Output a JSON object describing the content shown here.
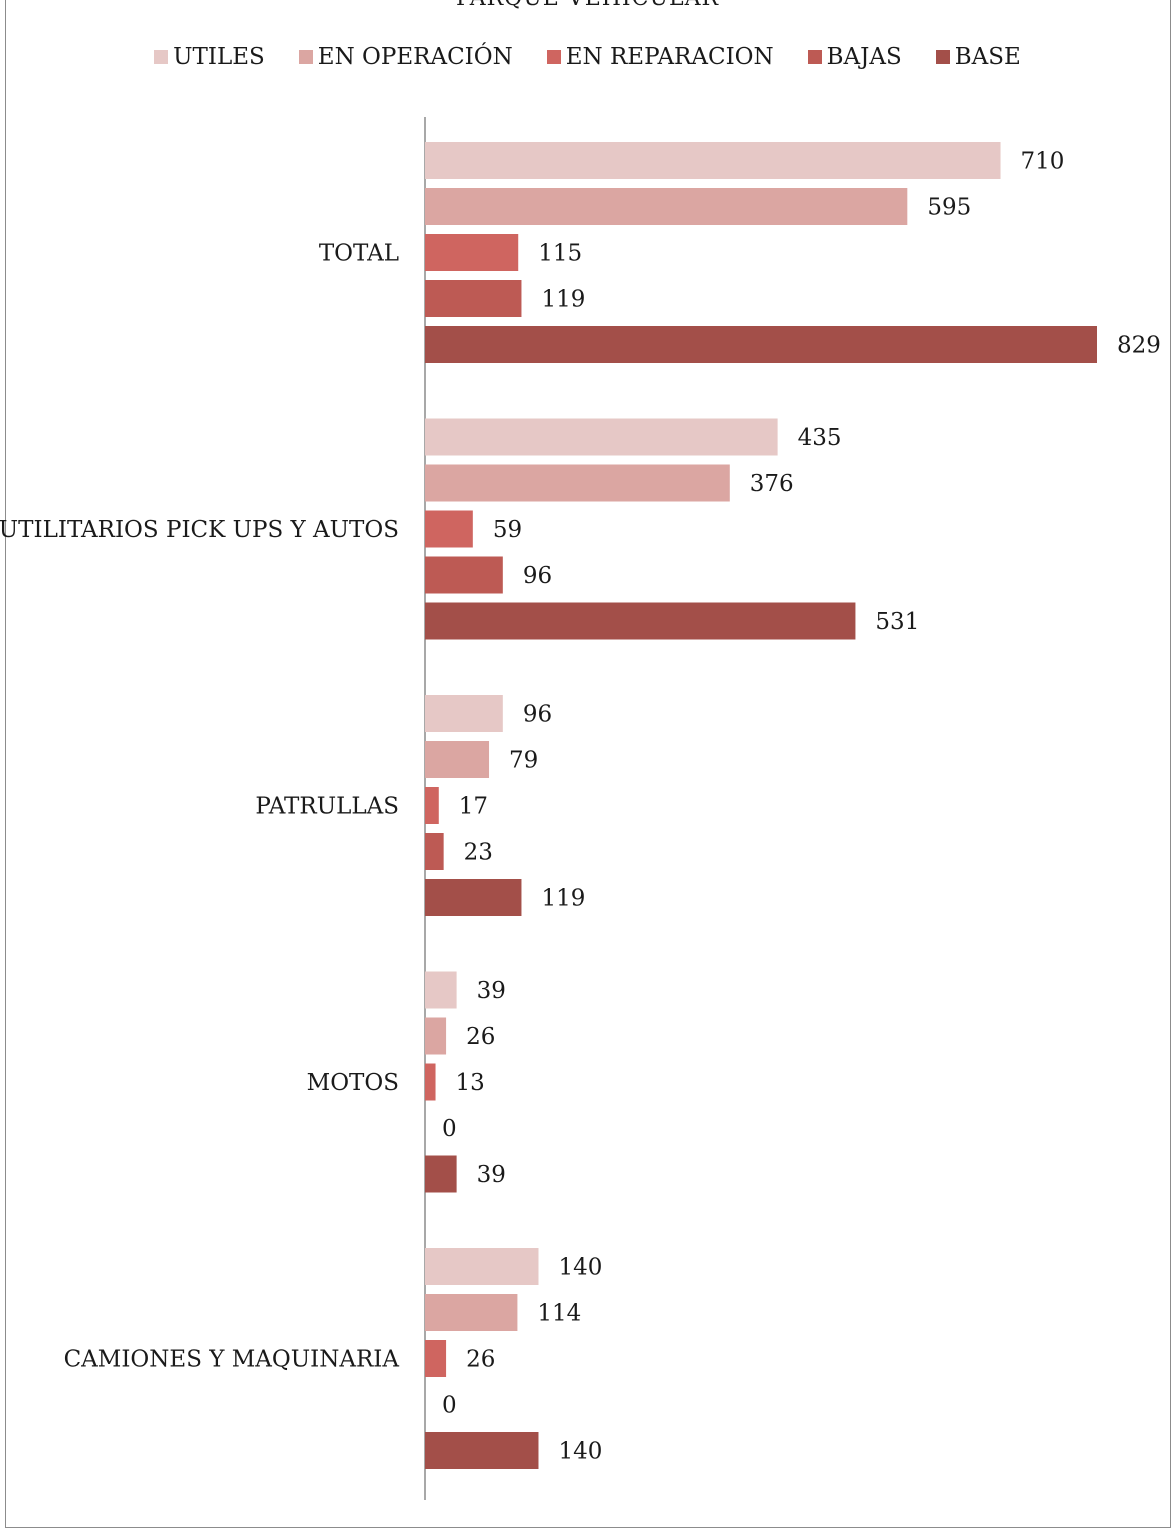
{
  "chart_data": {
    "type": "bar",
    "orientation": "horizontal",
    "title": "PARQUE VEHICULAR",
    "categories": [
      "TOTAL",
      "UTILITARIOS PICK UPS Y AUTOS",
      "PATRULLAS",
      "MOTOS",
      "CAMIONES Y MAQUINARIA"
    ],
    "series": [
      {
        "name": "UTILES",
        "color": "#e6c8c6",
        "values": [
          710,
          435,
          96,
          39,
          140
        ]
      },
      {
        "name": "EN OPERACIÓN",
        "color": "#dba6a2",
        "values": [
          595,
          376,
          79,
          26,
          114
        ]
      },
      {
        "name": "EN REPARACION",
        "color": "#cf6560",
        "values": [
          115,
          59,
          17,
          13,
          26
        ]
      },
      {
        "name": "BAJAS",
        "color": "#bd5a54",
        "values": [
          119,
          96,
          23,
          0,
          0
        ]
      },
      {
        "name": "BASE",
        "color": "#a34f49",
        "values": [
          829,
          531,
          119,
          39,
          140
        ]
      }
    ],
    "xlim": [
      0,
      829
    ],
    "legend_position": "top",
    "grid": false,
    "data_labels": true
  }
}
